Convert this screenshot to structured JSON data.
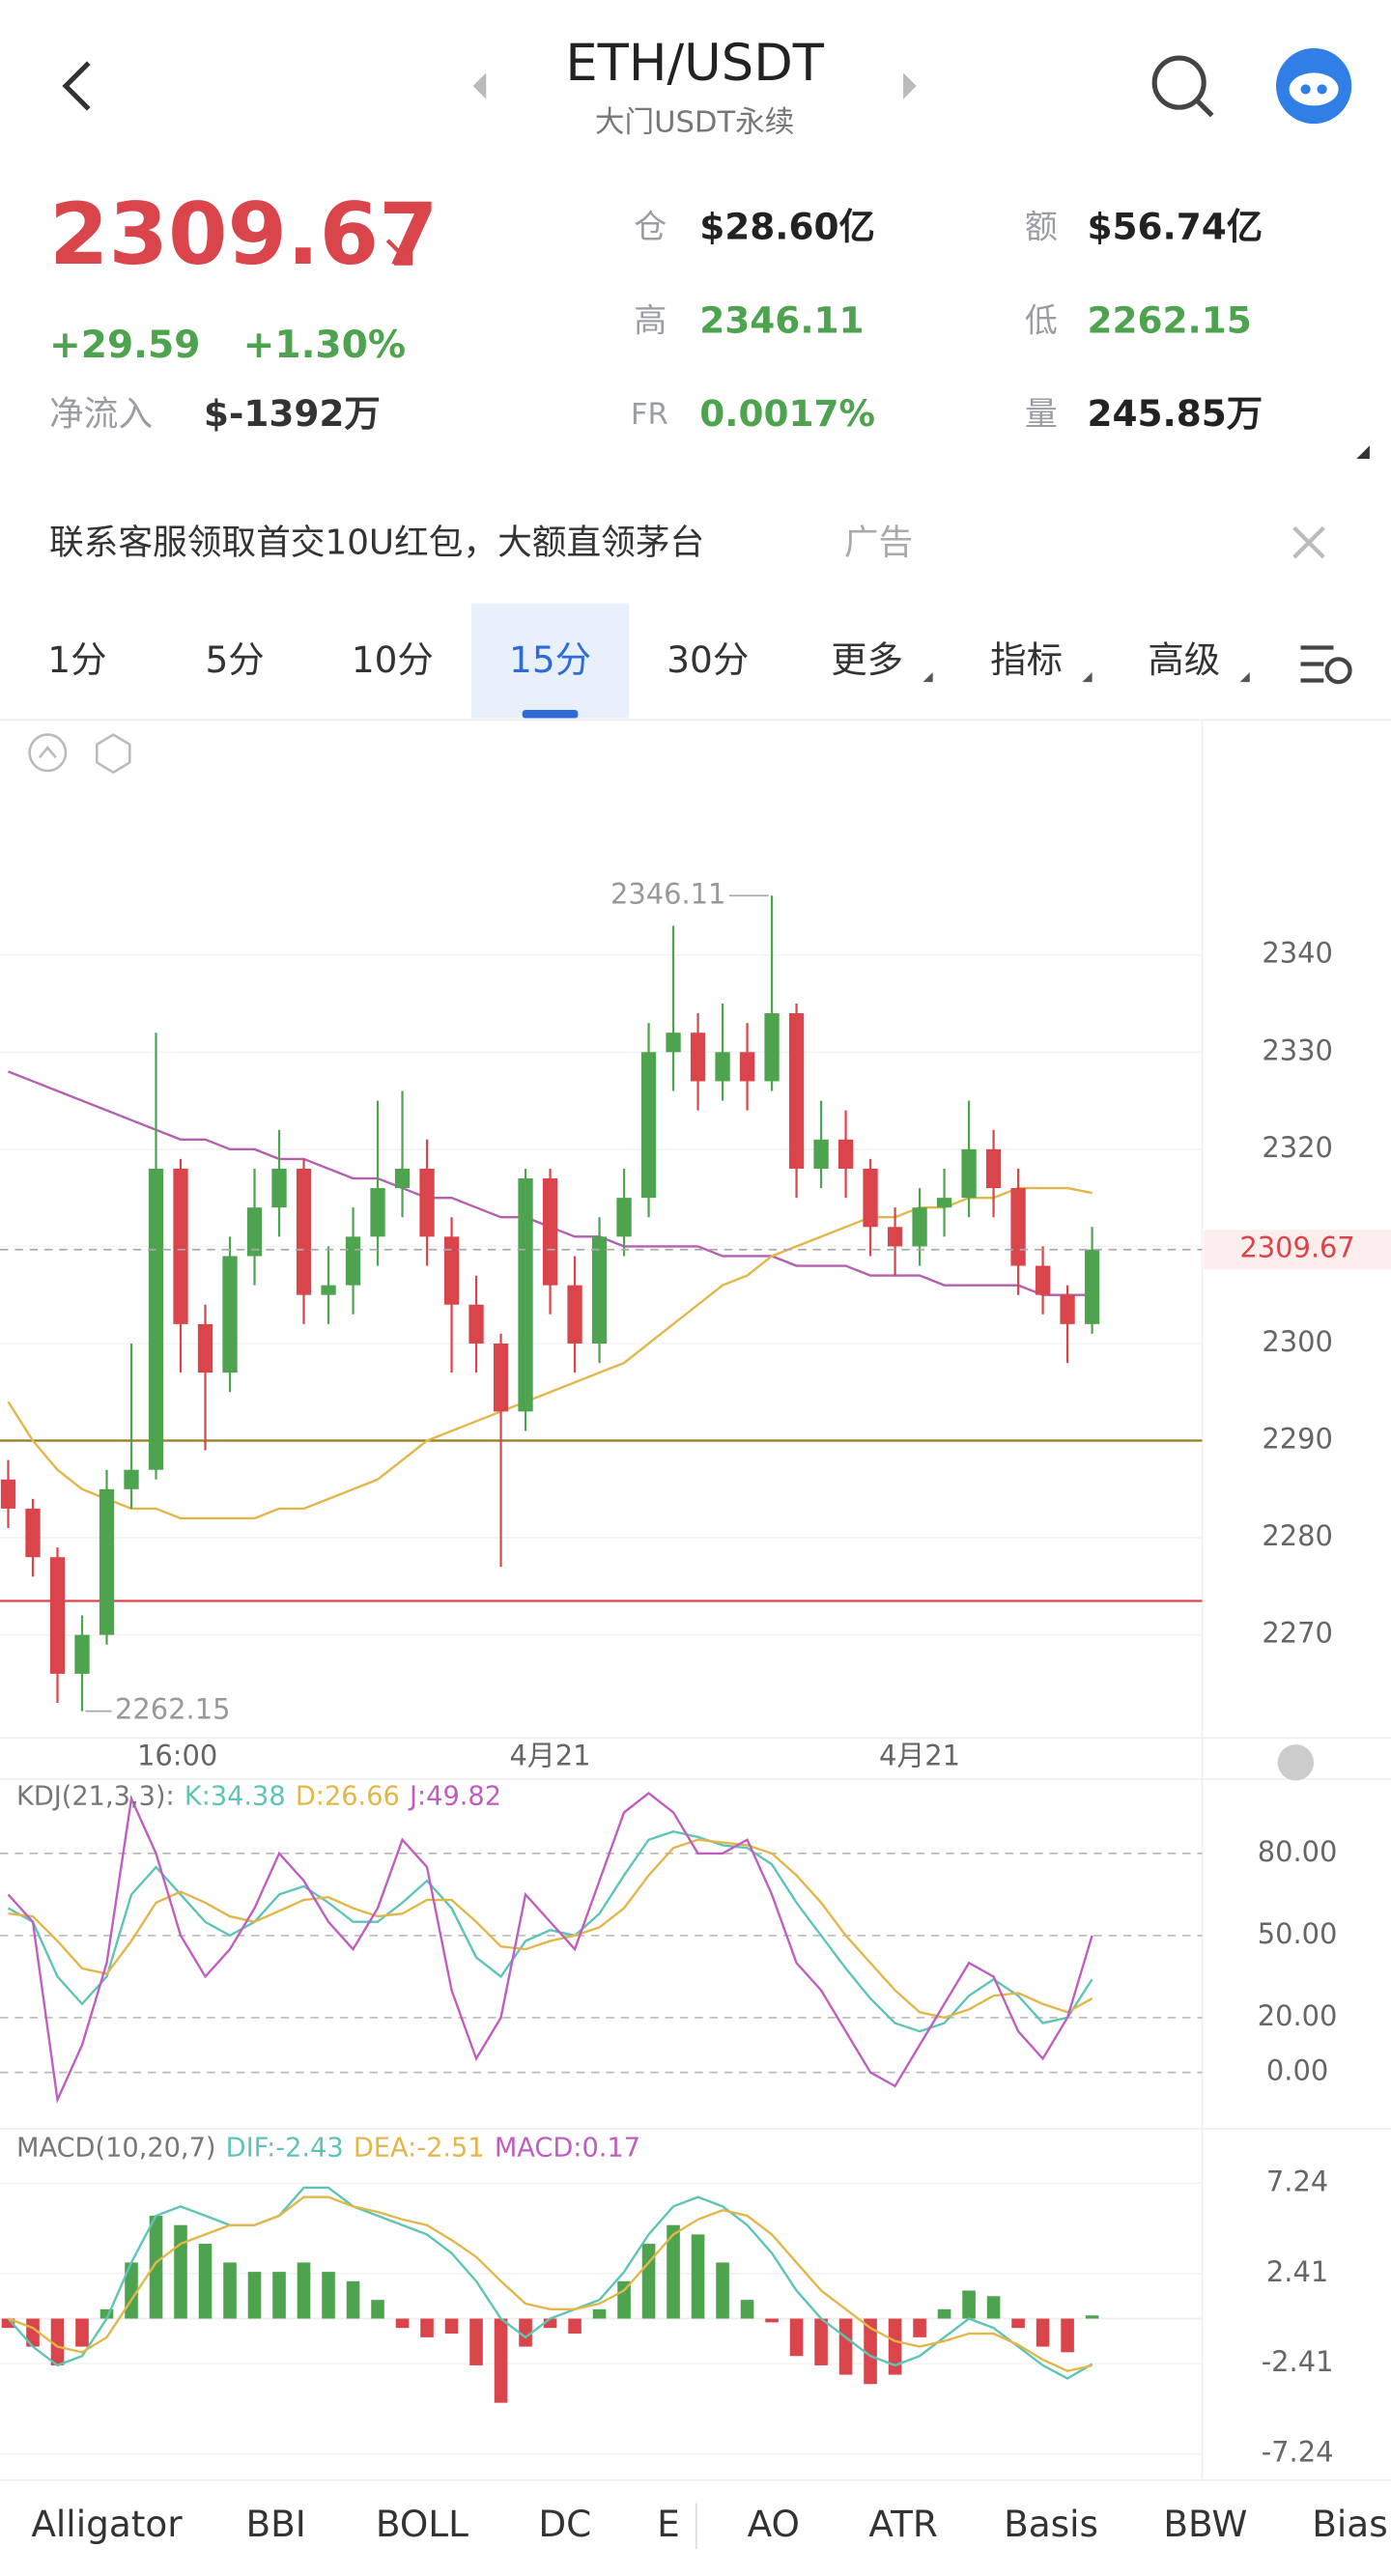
{
  "header": {
    "title": "ETH/USDT",
    "subtitle": "大门USDT永续"
  },
  "quote": {
    "last": "2309.67",
    "change": "+29.59",
    "change_pct": "+1.30%",
    "netflow_label": "净流入",
    "netflow": "$-1392万",
    "stats": [
      {
        "label": "仓",
        "value": "$28.60亿"
      },
      {
        "label": "额",
        "value": "$56.74亿"
      },
      {
        "label": "高",
        "value": "2346.11"
      },
      {
        "label": "低",
        "value": "2262.15"
      },
      {
        "label": "FR",
        "value": "0.0017%"
      },
      {
        "label": "量",
        "value": "245.85万"
      }
    ]
  },
  "ad": {
    "text": "联系客服领取首交10U红包，大额直领茅台",
    "tag": "广告"
  },
  "tabs": [
    "1分",
    "5分",
    "10分",
    "15分",
    "30分",
    "更多",
    "指标",
    "高级"
  ],
  "active_tab": 3,
  "chart_data": [
    {
      "type": "candlestick",
      "open": [
        2286,
        2283,
        2278,
        2266,
        2270,
        2285,
        2287,
        2318,
        2302,
        2297,
        2309,
        2314,
        2318,
        2305,
        2306,
        2311,
        2316,
        2318,
        2311,
        2304,
        2300,
        2293,
        2317,
        2306,
        2300,
        2311,
        2315,
        2330,
        2332,
        2327,
        2330,
        2327,
        2334,
        2318,
        2321,
        2318,
        2312,
        2310,
        2314,
        2315,
        2320,
        2316,
        2308,
        2305,
        2302
      ],
      "high": [
        2288,
        2284,
        2279,
        2272,
        2287,
        2300,
        2332,
        2319,
        2304,
        2311,
        2318,
        2322,
        2319,
        2310,
        2314,
        2325,
        2326,
        2321,
        2313,
        2307,
        2301,
        2318,
        2318,
        2309,
        2313,
        2318,
        2333,
        2343,
        2334,
        2335,
        2333,
        2346.11,
        2335,
        2325,
        2324,
        2319,
        2314,
        2316,
        2318,
        2325,
        2322,
        2318,
        2310,
        2306,
        2312
      ],
      "low": [
        2281,
        2276,
        2263,
        2262.15,
        2269,
        2283,
        2286,
        2297,
        2289,
        2295,
        2306,
        2311,
        2302,
        2302,
        2303,
        2308,
        2313,
        2308,
        2297,
        2297,
        2277,
        2291,
        2303,
        2297,
        2298,
        2309,
        2313,
        2326,
        2324,
        2325,
        2324,
        2326,
        2315,
        2316,
        2315,
        2309,
        2307,
        2308,
        2311,
        2313,
        2313,
        2305,
        2303,
        2298,
        2301
      ],
      "close": [
        2283,
        2278,
        2266,
        2270,
        2285,
        2287,
        2318,
        2302,
        2297,
        2309,
        2314,
        2318,
        2305,
        2306,
        2311,
        2316,
        2318,
        2311,
        2304,
        2300,
        2293,
        2317,
        2306,
        2300,
        2311,
        2315,
        2330,
        2332,
        2327,
        2330,
        2327,
        2334,
        2318,
        2321,
        2318,
        2312,
        2310,
        2314,
        2315,
        2320,
        2316,
        2308,
        2305,
        2302,
        2309.67
      ],
      "up_color": "#4ea34f",
      "down_color": "#d9454a",
      "overlays": [
        {
          "color": "#b55fb0",
          "values": [
            2328,
            2327,
            2326,
            2325,
            2324,
            2323,
            2322,
            2321,
            2321,
            2320,
            2320,
            2319,
            2319,
            2318,
            2317,
            2317,
            2316,
            2315,
            2315,
            2314,
            2313,
            2313,
            2312,
            2311,
            2311,
            2310,
            2310,
            2310,
            2310,
            2309,
            2309,
            2309,
            2308,
            2308,
            2308,
            2307,
            2307,
            2307,
            2306,
            2306,
            2306,
            2306,
            2305,
            2305,
            2305
          ]
        },
        {
          "color": "#e3b64a",
          "values": [
            2294,
            2290,
            2287,
            2285,
            2284,
            2283,
            2283,
            2282,
            2282,
            2282,
            2282,
            2283,
            2283,
            2284,
            2285,
            2286,
            2288,
            2290,
            2291,
            2292,
            2293,
            2294,
            2295,
            2296,
            2297,
            2298,
            2300,
            2302,
            2304,
            2306,
            2307,
            2309,
            2310,
            2311,
            2312,
            2313,
            2313,
            2314,
            2314,
            2315,
            2315,
            2316,
            2316,
            2316,
            2315.5
          ]
        }
      ],
      "levels": [
        {
          "value": 2290,
          "color": "#9a7a1e"
        },
        {
          "value": 2273.5,
          "color": "#d9454a"
        }
      ],
      "last_price": 2309.67,
      "annotations": [
        "2346.11",
        "2262.15"
      ],
      "x_labels": [
        "16:00",
        "4月21",
        "4月21"
      ],
      "ylim": [
        2259.9,
        2358.8
      ],
      "yticks": [
        2270,
        2280,
        2290,
        2300,
        2310,
        2320,
        2330,
        2340
      ]
    },
    {
      "type": "line",
      "title": "KDJ(21,3,3):",
      "series": [
        {
          "name": "K:34.38",
          "color": "#5fc4b8",
          "values": [
            60,
            55,
            35,
            25,
            35,
            65,
            75,
            65,
            55,
            50,
            55,
            65,
            68,
            62,
            55,
            55,
            62,
            70,
            60,
            42,
            35,
            48,
            52,
            50,
            58,
            72,
            85,
            88,
            86,
            83,
            82,
            76,
            62,
            50,
            38,
            27,
            18,
            15,
            18,
            28,
            34,
            28,
            18,
            20,
            34
          ]
        },
        {
          "name": "D:26.66",
          "color": "#e3b64a",
          "values": [
            58,
            57,
            48,
            38,
            36,
            48,
            62,
            66,
            62,
            57,
            55,
            59,
            63,
            64,
            60,
            57,
            58,
            63,
            63,
            55,
            46,
            45,
            48,
            50,
            53,
            60,
            72,
            82,
            85,
            84,
            83,
            80,
            72,
            62,
            50,
            40,
            30,
            22,
            20,
            23,
            28,
            29,
            25,
            22,
            27
          ]
        },
        {
          "name": "J:49.82",
          "color": "#c05ec0",
          "values": [
            65,
            55,
            -10,
            10,
            40,
            100,
            80,
            50,
            35,
            45,
            60,
            80,
            70,
            55,
            45,
            60,
            85,
            75,
            30,
            5,
            20,
            65,
            55,
            45,
            70,
            95,
            102,
            95,
            80,
            80,
            85,
            65,
            40,
            30,
            15,
            0,
            -5,
            10,
            25,
            40,
            35,
            15,
            5,
            20,
            50
          ]
        }
      ],
      "ylim": [
        -20,
        103
      ],
      "yticks": [
        {
          "value": 0,
          "label": "0.00"
        },
        {
          "value": 20,
          "label": "20.00"
        },
        {
          "value": 50,
          "label": "50.00"
        },
        {
          "value": 80,
          "label": "80.00"
        }
      ]
    },
    {
      "type": "macd",
      "title": "MACD(10,20,7)",
      "series": [
        {
          "name": "DIF:-2.43",
          "color": "#5fc4b8",
          "values": [
            0,
            -1.5,
            -2.5,
            -2,
            0,
            3,
            5.5,
            6,
            5.5,
            5,
            5,
            5.5,
            7,
            7,
            6,
            5.5,
            5,
            4.5,
            3.5,
            2,
            0,
            -1,
            0,
            0.5,
            1,
            2.5,
            4.5,
            6,
            6.5,
            6,
            5,
            3.5,
            1.5,
            0,
            -1,
            -2,
            -2.5,
            -2,
            -1,
            0,
            -0.5,
            -1.5,
            -2.5,
            -3.2,
            -2.43
          ]
        },
        {
          "name": "DEA:-2.51",
          "color": "#e3b64a",
          "values": [
            0,
            -0.5,
            -1.5,
            -1.8,
            -1,
            1,
            3,
            4,
            4.5,
            5,
            5,
            5.5,
            6.5,
            6.5,
            6,
            5.7,
            5.3,
            5,
            4.2,
            3.3,
            2,
            0.8,
            0.5,
            0.5,
            0.8,
            1.5,
            3,
            4.5,
            5.3,
            5.8,
            5.5,
            4.5,
            3,
            1.5,
            0.5,
            -0.5,
            -1.2,
            -1.5,
            -1.2,
            -0.8,
            -0.8,
            -1.4,
            -2.2,
            -2.8,
            -2.51
          ]
        }
      ],
      "bars": {
        "name": "MACD:0.17",
        "legend_color": "#c05ec0",
        "up_color": "#4ea34f",
        "down_color": "#d9454a",
        "values": [
          -0.5,
          -1.5,
          -2.5,
          -1.5,
          0.5,
          3,
          5.5,
          5,
          4,
          3,
          2.5,
          2.5,
          3,
          2.5,
          2,
          1,
          -0.5,
          -1,
          -0.8,
          -2.5,
          -4.5,
          -1.5,
          -0.5,
          -0.8,
          0.5,
          2,
          4,
          5,
          4.5,
          3,
          1,
          -0.2,
          -2,
          -2.5,
          -3,
          -3.5,
          -3,
          -1,
          0.5,
          1.5,
          1.2,
          -0.5,
          -1.5,
          -1.8,
          0.17
        ]
      },
      "ylim": [
        -8.2,
        9.8
      ],
      "yticks": [
        -7.24,
        -2.41,
        2.41,
        7.24
      ]
    }
  ],
  "indicators": [
    "Alligator",
    "BBI",
    "BOLL",
    "DC",
    "E",
    "AO",
    "ATR",
    "Basis",
    "BBW",
    "Bias"
  ]
}
